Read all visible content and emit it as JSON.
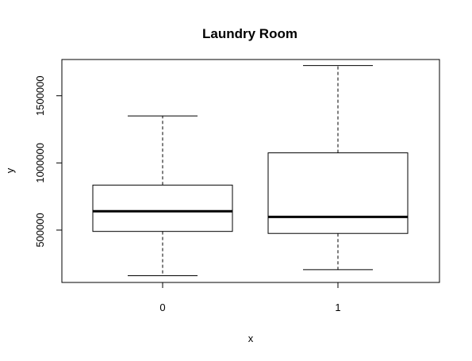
{
  "chart_data": {
    "type": "box",
    "title": "Laundry Room",
    "xlabel": "x",
    "ylabel": "y",
    "categories": [
      "0",
      "1"
    ],
    "boxes": [
      {
        "category": "0",
        "min": 160000,
        "q1": 490000,
        "median": 640000,
        "q3": 835000,
        "max": 1350000
      },
      {
        "category": "1",
        "min": 205000,
        "q1": 475000,
        "median": 598000,
        "q3": 1075000,
        "max": 1725000
      }
    ],
    "ylim": [
      110000,
      1770000
    ],
    "yticks": [
      500000,
      1000000,
      1500000
    ],
    "ytick_labels": [
      "500000",
      "1000000",
      "1500000"
    ],
    "grid": false,
    "colors": {
      "box_fill": "#ffffff",
      "stroke": "#000000"
    }
  }
}
